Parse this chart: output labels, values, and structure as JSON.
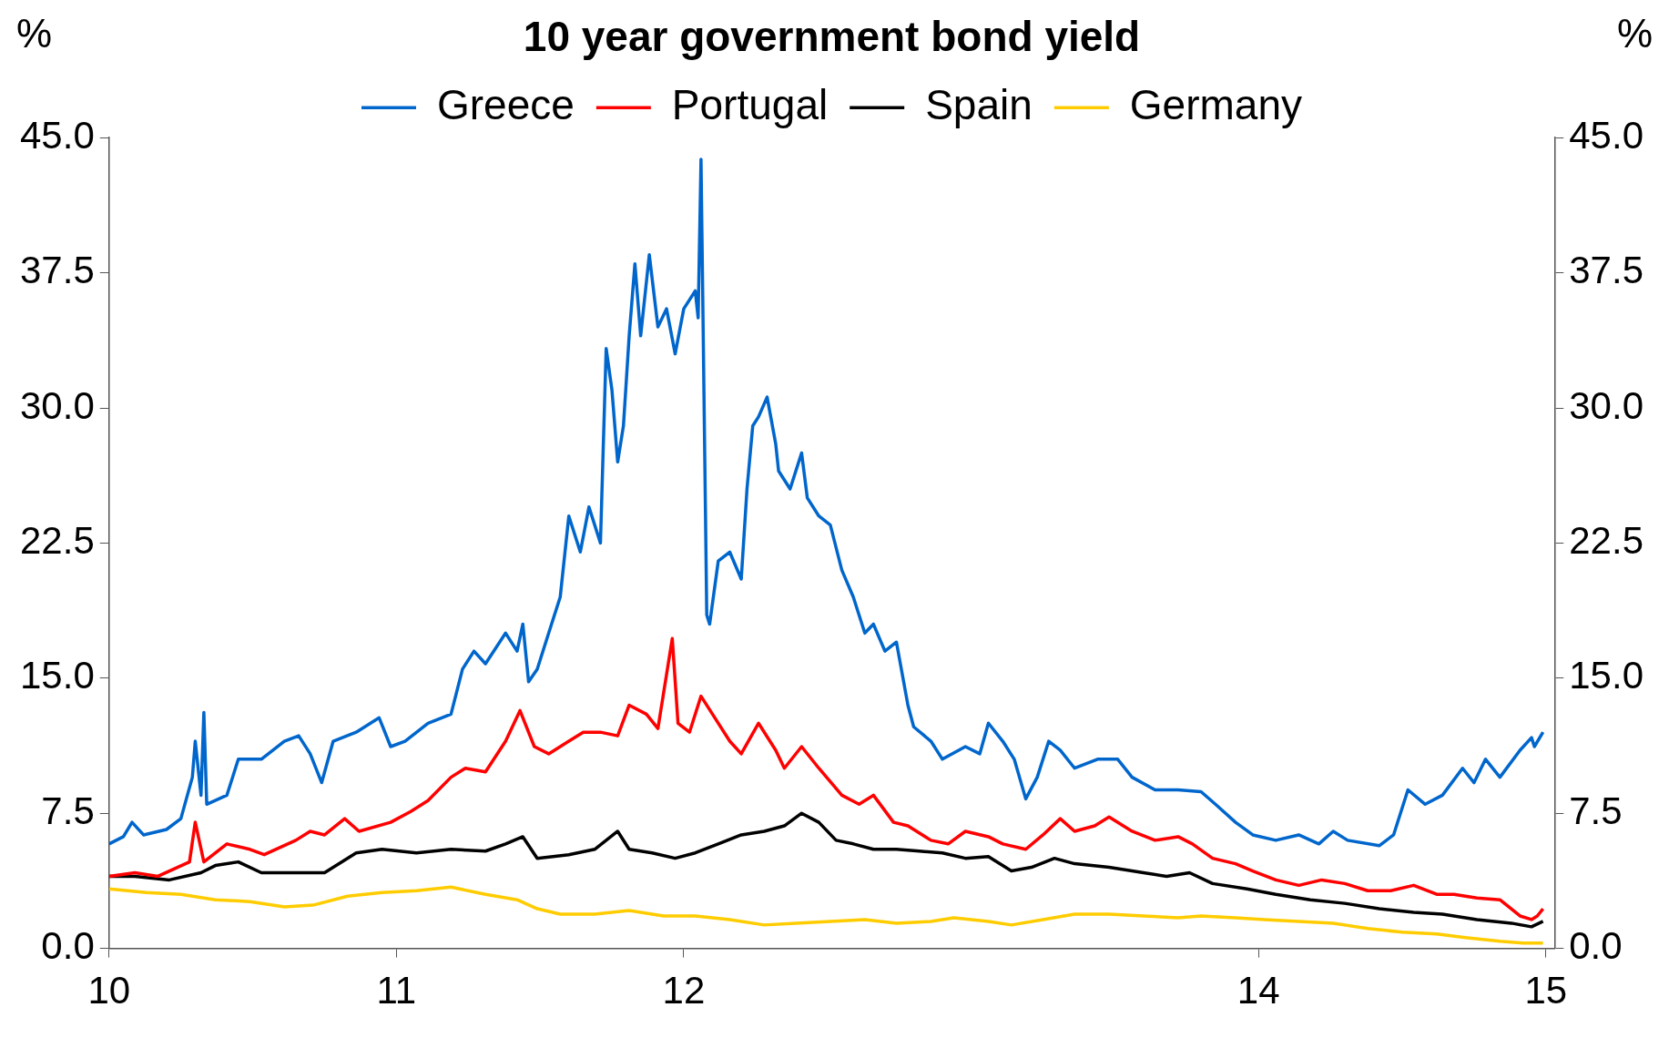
{
  "chart_data": {
    "type": "line",
    "title": "10 year government bond yield",
    "ylabel": "%",
    "y2label": "%",
    "legend": "top",
    "grid": false,
    "marker": "none",
    "line_style": "solid",
    "xlim": [
      2010,
      2015.03
    ],
    "xticks": [
      {
        "value": 2010,
        "label": "10"
      },
      {
        "value": 2011,
        "label": "11"
      },
      {
        "value": 2012,
        "label": "12"
      },
      {
        "value": 2014,
        "label": "14"
      },
      {
        "value": 2015,
        "label": "15"
      }
    ],
    "ylim": [
      0,
      45
    ],
    "yticks": [
      {
        "value": 0,
        "label": "0.0"
      },
      7.5,
      {
        "value": 15,
        "label": "15.0"
      },
      22.5,
      {
        "value": 30,
        "label": "30.0"
      },
      37.5,
      {
        "value": 45,
        "label": "45.0"
      }
    ],
    "y2lim": [
      0,
      45
    ],
    "y2ticks": [
      {
        "value": 0,
        "label": "0.0"
      },
      7.5,
      {
        "value": 15,
        "label": "15.0"
      },
      22.5,
      {
        "value": 30,
        "label": "30.0"
      },
      37.5,
      {
        "value": 45,
        "label": "45.0"
      }
    ],
    "series": [
      {
        "name": "Greece",
        "color": "#0066cc",
        "x": [
          2010,
          2010.05,
          2010.08,
          2010.12,
          2010.2,
          2010.25,
          2010.29,
          2010.3,
          2010.32,
          2010.33,
          2010.34,
          2010.41,
          2010.45,
          2010.53,
          2010.61,
          2010.66,
          2010.7,
          2010.74,
          2010.78,
          2010.86,
          2010.94,
          2010.98,
          2011.03,
          2011.11,
          2011.19,
          2011.23,
          2011.27,
          2011.31,
          2011.38,
          2011.42,
          2011.44,
          2011.46,
          2011.49,
          2011.53,
          2011.57,
          2011.6,
          2011.64,
          2011.67,
          2011.71,
          2011.73,
          2011.75,
          2011.77,
          2011.79,
          2011.81,
          2011.83,
          2011.85,
          2011.88,
          2011.91,
          2011.94,
          2011.97,
          2012.0,
          2012.04,
          2012.05,
          2012.06,
          2012.08,
          2012.09,
          2012.12,
          2012.16,
          2012.2,
          2012.22,
          2012.24,
          2012.26,
          2012.29,
          2012.32,
          2012.33,
          2012.37,
          2012.41,
          2012.43,
          2012.47,
          2012.51,
          2012.55,
          2012.59,
          2012.63,
          2012.66,
          2012.7,
          2012.74,
          2012.78,
          2012.8,
          2012.86,
          2012.9,
          2012.98,
          2013.03,
          2013.06,
          2013.11,
          2013.15,
          2013.19,
          2013.23,
          2013.27,
          2013.31,
          2013.36,
          2013.44,
          2013.51,
          2013.56,
          2013.64,
          2013.72,
          2013.8,
          2013.85,
          2013.92,
          2013.98,
          2014.06,
          2014.14,
          2014.21,
          2014.26,
          2014.31,
          2014.42,
          2014.47,
          2014.52,
          2014.58,
          2014.64,
          2014.71,
          2014.75,
          2014.79,
          2014.84,
          2014.91,
          2014.95,
          2014.96,
          2014.99
        ],
        "values": [
          5.8,
          6.2,
          7.0,
          6.3,
          6.6,
          7.2,
          9.5,
          11.5,
          8.5,
          13.1,
          8.0,
          8.5,
          10.5,
          10.5,
          11.5,
          11.8,
          10.8,
          9.2,
          11.5,
          12.0,
          12.8,
          11.2,
          11.5,
          12.5,
          13.0,
          15.5,
          16.5,
          15.8,
          17.5,
          16.5,
          18.0,
          14.8,
          15.5,
          17.5,
          19.5,
          24.0,
          22.0,
          24.5,
          22.5,
          33.3,
          31.0,
          27.0,
          29.0,
          34.0,
          38.0,
          34.0,
          38.5,
          34.5,
          35.5,
          33.0,
          35.5,
          36.5,
          35.0,
          43.8,
          18.5,
          18.0,
          21.5,
          22.0,
          20.5,
          25.5,
          29.0,
          29.5,
          30.6,
          28.0,
          26.5,
          25.5,
          27.5,
          25.0,
          24.0,
          23.5,
          21.0,
          19.5,
          17.5,
          18.0,
          16.5,
          17.0,
          13.5,
          12.3,
          11.5,
          10.5,
          11.2,
          10.8,
          12.5,
          11.5,
          10.5,
          8.3,
          9.5,
          11.5,
          11.0,
          10.0,
          10.5,
          10.5,
          9.5,
          8.8,
          8.8,
          8.7,
          8.0,
          7.0,
          6.3,
          6.0,
          6.3,
          5.8,
          6.5,
          6.0,
          5.7,
          6.3,
          8.8,
          8.0,
          8.5,
          10.0,
          9.2,
          10.5,
          9.5,
          11.0,
          11.7,
          11.2,
          12.0
        ]
      },
      {
        "name": "Portugal",
        "color": "#ff0000",
        "x": [
          2010,
          2010.09,
          2010.17,
          2010.28,
          2010.3,
          2010.33,
          2010.41,
          2010.49,
          2010.54,
          2010.65,
          2010.7,
          2010.75,
          2010.82,
          2010.87,
          2010.98,
          2011.05,
          2011.11,
          2011.19,
          2011.24,
          2011.31,
          2011.38,
          2011.43,
          2011.48,
          2011.53,
          2011.6,
          2011.65,
          2011.71,
          2011.77,
          2011.81,
          2011.87,
          2011.91,
          2011.96,
          2011.98,
          2012.02,
          2012.06,
          2012.1,
          2012.16,
          2012.2,
          2012.26,
          2012.32,
          2012.35,
          2012.41,
          2012.47,
          2012.55,
          2012.61,
          2012.66,
          2012.73,
          2012.78,
          2012.86,
          2012.92,
          2012.98,
          2013.06,
          2013.11,
          2013.19,
          2013.25,
          2013.31,
          2013.36,
          2013.43,
          2013.48,
          2013.56,
          2013.64,
          2013.72,
          2013.77,
          2013.84,
          2013.92,
          2013.98,
          2014.06,
          2014.14,
          2014.22,
          2014.3,
          2014.38,
          2014.46,
          2014.54,
          2014.62,
          2014.68,
          2014.76,
          2014.84,
          2014.91,
          2014.95,
          2014.97,
          2014.99
        ],
        "values": [
          4.0,
          4.2,
          4.0,
          4.8,
          7.0,
          4.8,
          5.8,
          5.5,
          5.2,
          6.0,
          6.5,
          6.3,
          7.2,
          6.5,
          7.0,
          7.6,
          8.2,
          9.5,
          10.0,
          9.8,
          11.5,
          13.2,
          11.2,
          10.8,
          11.5,
          12.0,
          12.0,
          11.8,
          13.5,
          13.0,
          12.2,
          17.2,
          12.5,
          12.0,
          14.0,
          13.0,
          11.5,
          10.8,
          12.5,
          11.0,
          10.0,
          11.2,
          10.0,
          8.5,
          8.0,
          8.5,
          7.0,
          6.8,
          6.0,
          5.8,
          6.5,
          6.2,
          5.8,
          5.5,
          6.3,
          7.2,
          6.5,
          6.8,
          7.3,
          6.5,
          6.0,
          6.2,
          5.8,
          5.0,
          4.7,
          4.3,
          3.8,
          3.5,
          3.8,
          3.6,
          3.2,
          3.2,
          3.5,
          3.0,
          3.0,
          2.8,
          2.7,
          1.8,
          1.6,
          1.8,
          2.2
        ]
      },
      {
        "name": "Spain",
        "color": "#000000",
        "x": [
          2010,
          2010.09,
          2010.21,
          2010.32,
          2010.37,
          2010.45,
          2010.53,
          2010.65,
          2010.75,
          2010.86,
          2010.95,
          2011.07,
          2011.19,
          2011.31,
          2011.38,
          2011.44,
          2011.49,
          2011.6,
          2011.69,
          2011.77,
          2011.81,
          2011.89,
          2011.97,
          2012.04,
          2012.12,
          2012.2,
          2012.28,
          2012.35,
          2012.41,
          2012.47,
          2012.53,
          2012.59,
          2012.66,
          2012.74,
          2012.82,
          2012.9,
          2012.98,
          2013.06,
          2013.14,
          2013.21,
          2013.29,
          2013.36,
          2013.48,
          2013.6,
          2013.68,
          2013.76,
          2013.84,
          2013.96,
          2014.06,
          2014.18,
          2014.3,
          2014.42,
          2014.54,
          2014.64,
          2014.76,
          2014.88,
          2014.95,
          2014.99
        ],
        "values": [
          4.0,
          4.0,
          3.8,
          4.2,
          4.6,
          4.8,
          4.2,
          4.2,
          4.2,
          5.3,
          5.5,
          5.3,
          5.5,
          5.4,
          5.8,
          6.2,
          5.0,
          5.2,
          5.5,
          6.5,
          5.5,
          5.3,
          5.0,
          5.3,
          5.8,
          6.3,
          6.5,
          6.8,
          7.5,
          7.0,
          6.0,
          5.8,
          5.5,
          5.5,
          5.4,
          5.3,
          5.0,
          5.1,
          4.3,
          4.5,
          5.0,
          4.7,
          4.5,
          4.2,
          4.0,
          4.2,
          3.6,
          3.3,
          3.0,
          2.7,
          2.5,
          2.2,
          2.0,
          1.9,
          1.6,
          1.4,
          1.2,
          1.5
        ]
      },
      {
        "name": "Germany",
        "color": "#ffcc00",
        "x": [
          2010,
          2010.13,
          2010.25,
          2010.37,
          2010.49,
          2010.61,
          2010.71,
          2010.83,
          2010.95,
          2011.07,
          2011.19,
          2011.31,
          2011.42,
          2011.49,
          2011.57,
          2011.69,
          2011.81,
          2011.93,
          2012.04,
          2012.16,
          2012.28,
          2012.39,
          2012.51,
          2012.63,
          2012.74,
          2012.86,
          2012.94,
          2013.06,
          2013.14,
          2013.25,
          2013.36,
          2013.48,
          2013.6,
          2013.72,
          2013.8,
          2013.92,
          2014.02,
          2014.14,
          2014.26,
          2014.38,
          2014.5,
          2014.62,
          2014.72,
          2014.84,
          2014.92,
          2014.99
        ],
        "values": [
          3.3,
          3.1,
          3.0,
          2.7,
          2.6,
          2.3,
          2.4,
          2.9,
          3.1,
          3.2,
          3.4,
          3.0,
          2.7,
          2.2,
          1.9,
          1.9,
          2.1,
          1.8,
          1.8,
          1.6,
          1.3,
          1.4,
          1.5,
          1.6,
          1.4,
          1.5,
          1.7,
          1.5,
          1.3,
          1.6,
          1.9,
          1.9,
          1.8,
          1.7,
          1.8,
          1.7,
          1.6,
          1.5,
          1.4,
          1.1,
          0.9,
          0.8,
          0.6,
          0.4,
          0.3,
          0.3
        ]
      }
    ]
  }
}
